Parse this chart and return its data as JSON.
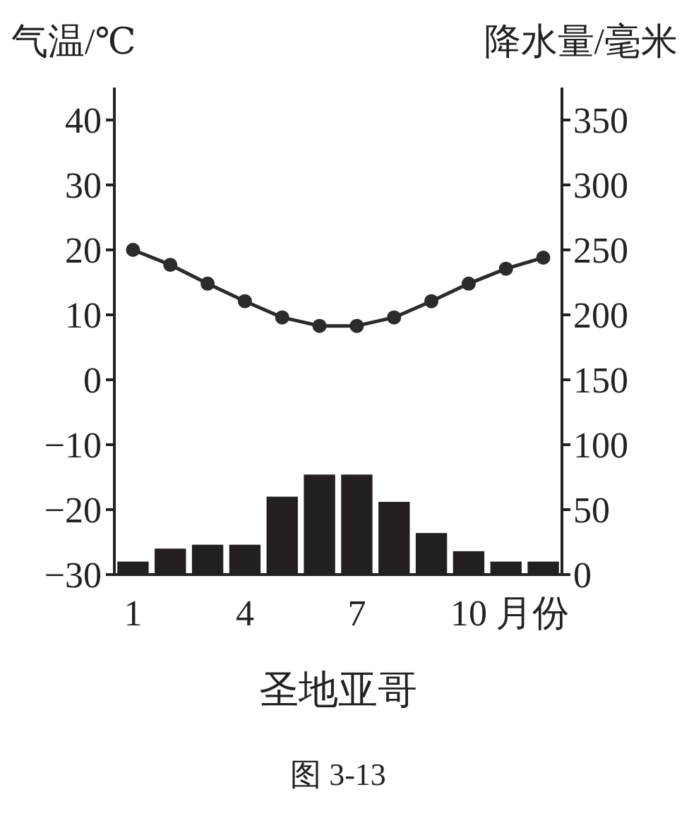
{
  "chart_data": {
    "type": "bar",
    "title": "圣地亚哥",
    "ylabel": "气温/℃",
    "y2label": "降水量/毫米",
    "xlabel": "月份",
    "annotations": [
      "图 3-13"
    ],
    "categories": [
      "1",
      null,
      null,
      "4",
      null,
      null,
      "7",
      null,
      null,
      "10",
      null,
      null
    ],
    "series": [
      {
        "axis": "y2",
        "color": "#231f20",
        "values": [
          10,
          20,
          23,
          23,
          60,
          77,
          77,
          56,
          32,
          18,
          10,
          10
        ]
      },
      {
        "type": "line",
        "color": "#2b2b2b",
        "values": [
          20,
          17.7,
          14.8,
          12.1,
          9.6,
          8.3,
          8.3,
          9.6,
          12.1,
          14.8,
          17.1,
          18.8
        ]
      }
    ],
    "ylim": [
      -30,
      45
    ],
    "yticks": [
      -30,
      -20,
      -10,
      0,
      10,
      20,
      30,
      40
    ],
    "y2lim": [
      0,
      375
    ],
    "y2ticks": [
      0,
      50,
      100,
      150,
      200,
      250,
      300,
      350
    ],
    "marker": "circle",
    "line_style": "solid"
  }
}
